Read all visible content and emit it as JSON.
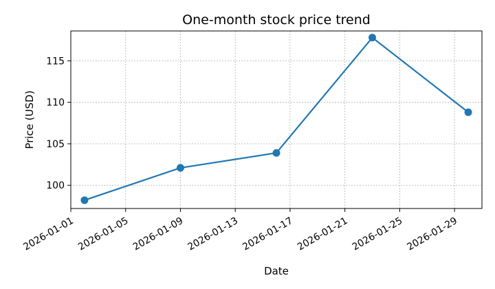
{
  "chart_data": {
    "type": "line",
    "title": "One-month stock price trend",
    "xlabel": "Date",
    "ylabel": "Price (USD)",
    "x_tick_labels": [
      "2026-01-01",
      "2026-01-05",
      "2026-01-09",
      "2026-01-13",
      "2026-01-17",
      "2026-01-21",
      "2026-01-25",
      "2026-01-29"
    ],
    "y_tick_labels": [
      "100",
      "105",
      "110",
      "115"
    ],
    "y_ticks": [
      100,
      105,
      110,
      115
    ],
    "xlim": [
      "2026-01-01",
      "2026-01-31"
    ],
    "ylim": [
      97.2,
      118.6
    ],
    "grid": true,
    "series": [
      {
        "color": "#1f77b4",
        "marker": "circle",
        "points": [
          {
            "x": "2026-01-02",
            "y": 98.2
          },
          {
            "x": "2026-01-09",
            "y": 102.1
          },
          {
            "x": "2026-01-16",
            "y": 103.9
          },
          {
            "x": "2026-01-23",
            "y": 117.8
          },
          {
            "x": "2026-01-30",
            "y": 108.8
          }
        ]
      }
    ]
  }
}
